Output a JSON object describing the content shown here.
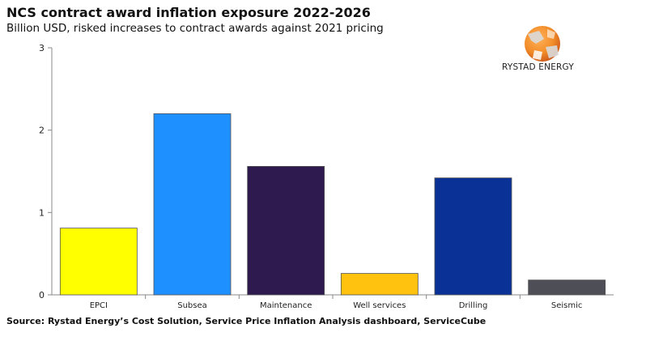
{
  "header": {
    "title": "NCS contract award inflation exposure 2022-2026",
    "subtitle": "Billion USD, risked increases to contract awards against 2021 pricing"
  },
  "footer": {
    "source": "Source: Rystad Energy’s Cost Solution, Service Price Inflation Analysis dashboard, ServiceCube"
  },
  "logo": {
    "text": "RYSTAD ENERGY",
    "colors": [
      "#f28c28",
      "#e0651a",
      "#c9c9c9"
    ]
  },
  "chart_data": {
    "type": "bar",
    "title": "",
    "xlabel": "",
    "ylabel": "",
    "ylim": [
      0,
      3
    ],
    "yticks": [
      0,
      1,
      2,
      3
    ],
    "grid": false,
    "categories": [
      "EPCI",
      "Subsea",
      "Maintenance",
      "Well services",
      "Drilling",
      "Seismic"
    ],
    "values": [
      0.81,
      2.2,
      1.56,
      0.26,
      1.42,
      0.18
    ],
    "colors": [
      "#ffff00",
      "#1e90ff",
      "#2e1a4f",
      "#ffc20e",
      "#0a3296",
      "#4d4e56"
    ]
  }
}
